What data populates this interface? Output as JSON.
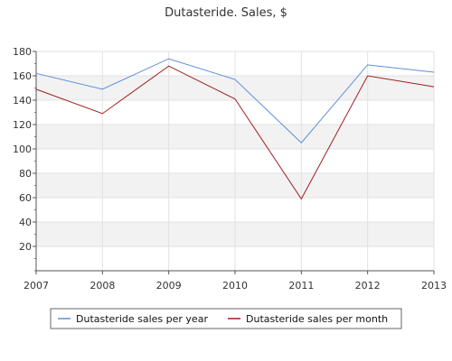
{
  "chart_data": {
    "type": "line",
    "title": "Dutasteride. Sales, $",
    "xlabel": "",
    "ylabel": "",
    "x": [
      "2007",
      "2008",
      "2009",
      "2010",
      "2011",
      "2012",
      "2013"
    ],
    "y_ticks": [
      "20",
      "40",
      "60",
      "80",
      "100",
      "120",
      "140",
      "160",
      "180"
    ],
    "ylim": [
      0,
      180
    ],
    "grid": "horizontal alternating bands",
    "legend_position": "bottom",
    "series": [
      {
        "name": "Dutasteride sales per year",
        "color": "#5b8fd9",
        "values": [
          162,
          149,
          174,
          157,
          105,
          169,
          163
        ]
      },
      {
        "name": "Dutasteride sales per month",
        "color": "#a02020",
        "values": [
          149,
          129,
          168,
          141,
          59,
          160,
          151
        ]
      }
    ]
  }
}
